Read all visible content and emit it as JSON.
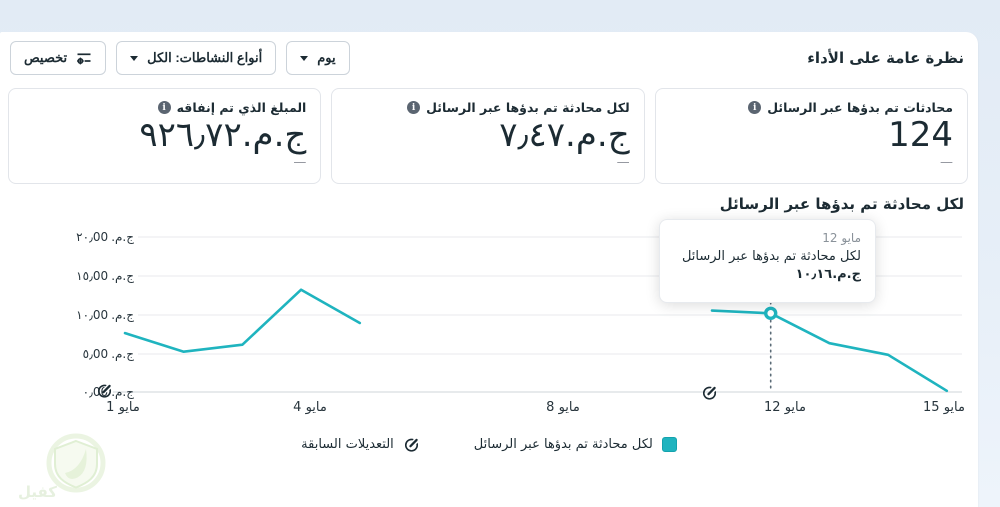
{
  "header": {
    "title": "نظرة عامة على الأداء",
    "buttons": {
      "day": "يوم",
      "activity_types": "أنواع النشاطات: الكل",
      "customize": "تخصيص"
    }
  },
  "metrics": [
    {
      "label": "محادثات تم بدؤها عبر الرسائل",
      "value": "124",
      "secondary": "—"
    },
    {
      "label": "لكل محادثة تم بدؤها عبر الرسائل",
      "value": "ج.م.٧٫٤٧",
      "secondary": "—"
    },
    {
      "label": "المبلغ الذي تم إنفاقه",
      "value": "ج.م.٩٢٦٫٧٢",
      "secondary": "—"
    }
  ],
  "chart": {
    "title": "لكل محادثة تم بدؤها عبر الرسائل",
    "tooltip": {
      "date": "12 مايو",
      "label": "لكل محادثة تم بدؤها عبر الرسائل",
      "value": "ج.م.١٠٫١٦"
    },
    "y_axis": {
      "currency": "ج.م.",
      "ticks": [
        {
          "amount": "٢٠٫00"
        },
        {
          "amount": "١٥٫00"
        },
        {
          "amount": "١٠٫00"
        },
        {
          "amount": "٥٫00"
        },
        {
          "amount": "٠٫00"
        }
      ]
    },
    "x_axis": {
      "labels": [
        "1 مايو",
        "4 مايو",
        "8 مايو",
        "12 مايو",
        "15 مايو"
      ]
    },
    "legend": [
      {
        "label": "لكل محادثة تم بدؤها عبر الرسائل",
        "swatch": "teal-square"
      },
      {
        "label": "التعديلات السابقة",
        "swatch": "edit-pencil-icon"
      }
    ]
  },
  "chart_data": {
    "type": "line",
    "title": "لكل محادثة تم بدؤها عبر الرسائل",
    "series_name": "لكل محادثة تم بدؤها عبر الرسائل",
    "currency": "ج.م.",
    "month": "مايو",
    "ylim": [
      0,
      20
    ],
    "y_tick_values": [
      0,
      5,
      10,
      15,
      20
    ],
    "grid": true,
    "legend_position": "bottom-center",
    "highlighted_point": {
      "day": 12,
      "value": 10.16
    },
    "points": [
      {
        "day": 1,
        "value": 7.6
      },
      {
        "day": 2,
        "value": 5.2
      },
      {
        "day": 3,
        "value": 6.1
      },
      {
        "day": 4,
        "value": 13.2
      },
      {
        "day": 5,
        "value": 8.9
      },
      {
        "day": 6,
        "value": null
      },
      {
        "day": 7,
        "value": null
      },
      {
        "day": 8,
        "value": null
      },
      {
        "day": 9,
        "value": null
      },
      {
        "day": 10,
        "value": null
      },
      {
        "day": 11,
        "value": 10.5
      },
      {
        "day": 12,
        "value": 10.16,
        "highlight": true
      },
      {
        "day": 13,
        "value": 6.3
      },
      {
        "day": 14,
        "value": 4.8
      },
      {
        "day": 15,
        "value": 0.15
      }
    ]
  },
  "colors": {
    "accent_teal": "#1fb4bf",
    "text_dark": "#1c2b33",
    "text_gray": "#8a929a",
    "grid": "#e8eaed",
    "page_bg": "#e7eff8"
  },
  "watermark": {
    "text": "كفيل"
  }
}
